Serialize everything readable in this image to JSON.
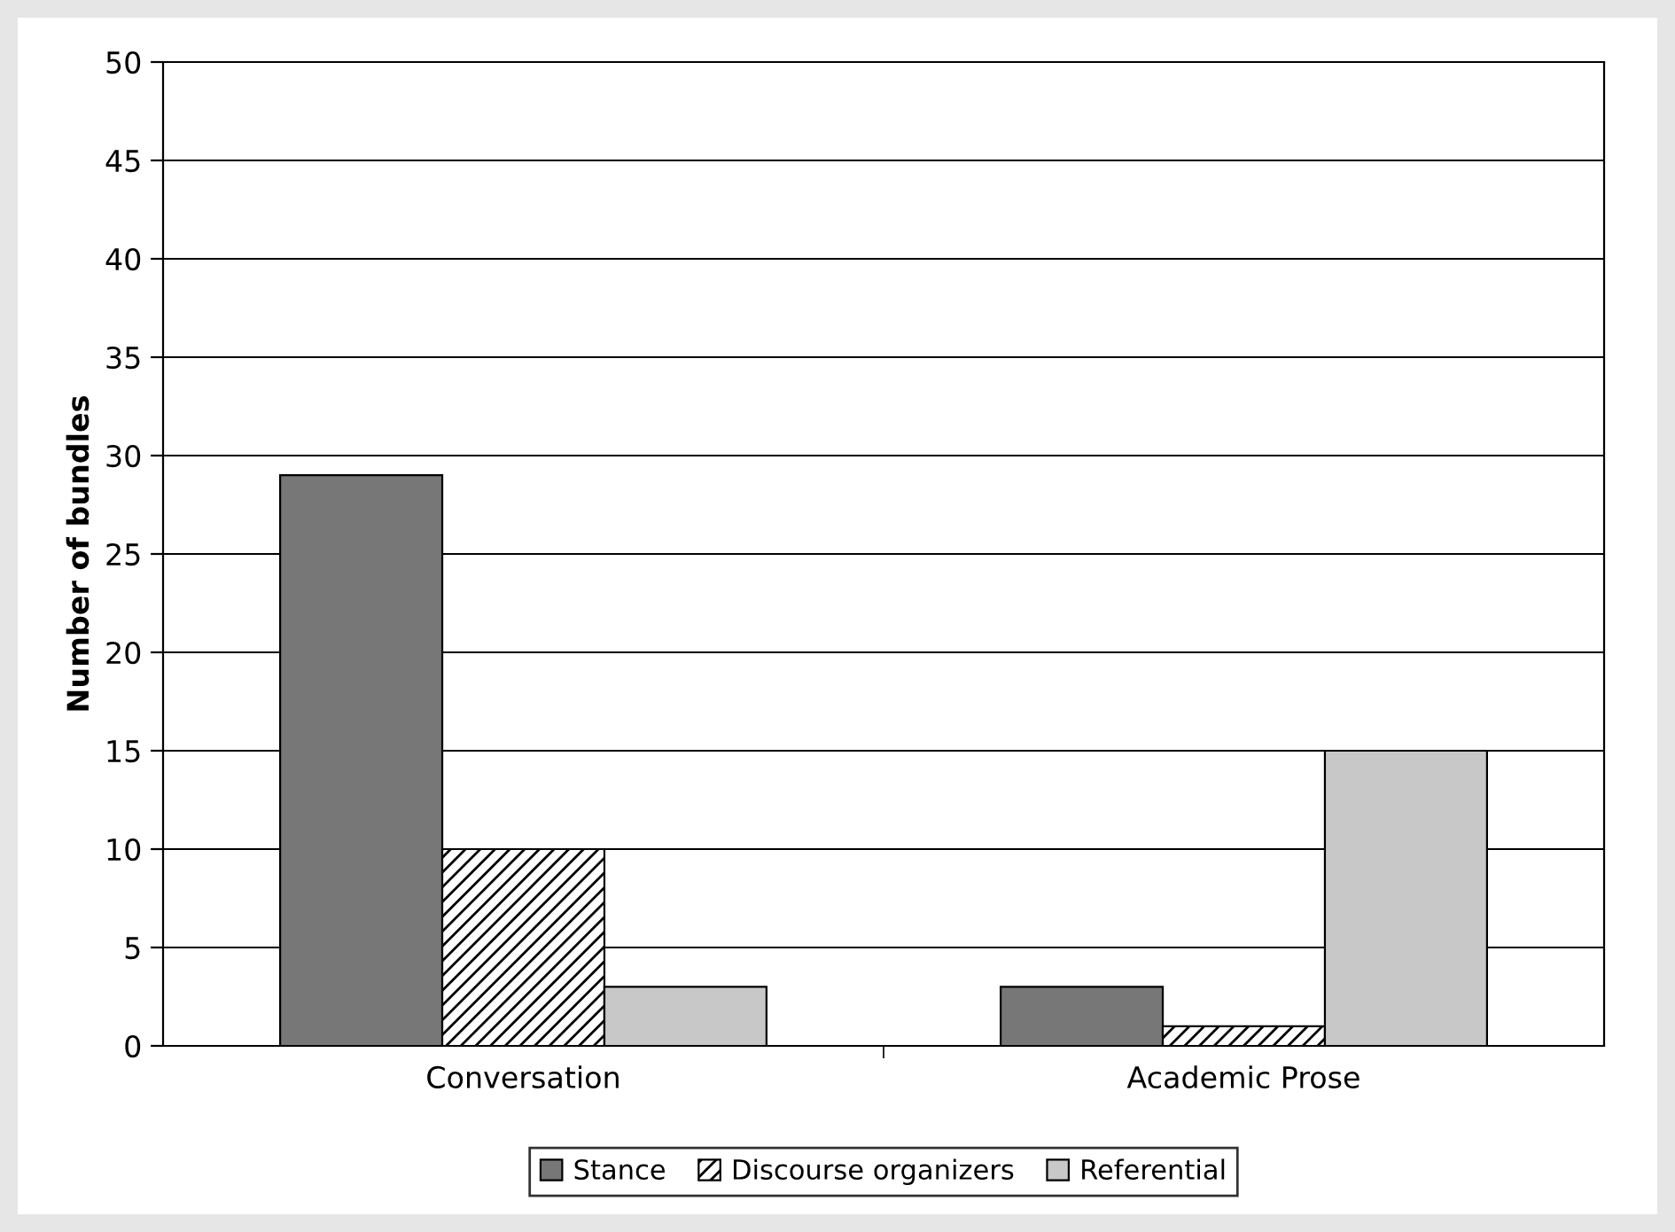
{
  "chart_data": {
    "type": "bar",
    "ylabel": "Number of bundles",
    "categories": [
      "Conversation",
      "Academic Prose"
    ],
    "series": [
      {
        "name": "Stance",
        "color": "#777777",
        "values": [
          29,
          3
        ]
      },
      {
        "name": "Discourse organizers",
        "color": "#000000",
        "values": [
          10,
          1
        ]
      },
      {
        "name": "Referential",
        "color": "#c8c8c8",
        "values": [
          3,
          15
        ]
      }
    ],
    "ylim": [
      0,
      50
    ],
    "yticks": [
      0,
      5,
      10,
      15,
      20,
      25,
      30,
      35,
      40,
      45,
      50
    ],
    "grid": "y",
    "legend": "bottom"
  }
}
